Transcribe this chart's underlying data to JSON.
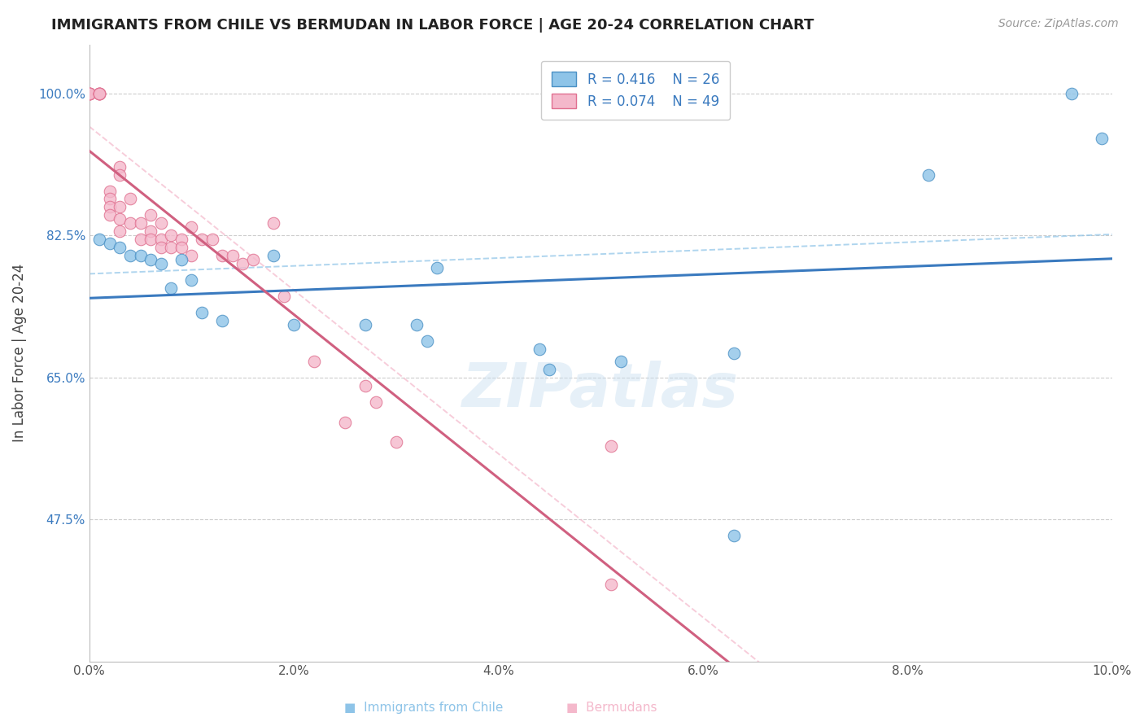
{
  "title": "IMMIGRANTS FROM CHILE VS BERMUDAN IN LABOR FORCE | AGE 20-24 CORRELATION CHART",
  "source": "Source: ZipAtlas.com",
  "ylabel": "In Labor Force | Age 20-24",
  "xlim": [
    0.0,
    0.1
  ],
  "ylim": [
    0.3,
    1.06
  ],
  "yticks": [
    0.475,
    0.65,
    0.825,
    1.0
  ],
  "ytick_labels": [
    "47.5%",
    "65.0%",
    "82.5%",
    "100.0%"
  ],
  "xticks": [
    0.0,
    0.02,
    0.04,
    0.06,
    0.08,
    0.1
  ],
  "xtick_labels": [
    "0.0%",
    "2.0%",
    "4.0%",
    "6.0%",
    "8.0%",
    "10.0%"
  ],
  "legend_r_chile": "R = 0.416",
  "legend_n_chile": "N = 26",
  "legend_r_bermuda": "R = 0.074",
  "legend_n_bermuda": "N = 49",
  "blue_fill": "#8ec4e8",
  "pink_fill": "#f4b8cb",
  "blue_edge": "#4a90c4",
  "pink_edge": "#e07090",
  "trend_blue": "#3a7abf",
  "trend_pink": "#d06080",
  "watermark": "ZIPatlas",
  "chile_x": [
    0.001,
    0.002,
    0.003,
    0.004,
    0.005,
    0.006,
    0.007,
    0.008,
    0.009,
    0.01,
    0.011,
    0.013,
    0.018,
    0.02,
    0.027,
    0.032,
    0.033,
    0.034,
    0.044,
    0.045,
    0.052,
    0.063,
    0.063,
    0.082,
    0.096,
    0.099
  ],
  "chile_y": [
    0.82,
    0.815,
    0.81,
    0.8,
    0.8,
    0.795,
    0.79,
    0.76,
    0.795,
    0.77,
    0.73,
    0.72,
    0.8,
    0.715,
    0.715,
    0.715,
    0.695,
    0.785,
    0.685,
    0.66,
    0.67,
    0.68,
    0.455,
    0.9,
    1.0,
    0.945
  ],
  "bermuda_x": [
    0.0,
    0.0,
    0.0,
    0.0,
    0.0,
    0.001,
    0.001,
    0.001,
    0.001,
    0.001,
    0.002,
    0.002,
    0.002,
    0.002,
    0.003,
    0.003,
    0.003,
    0.003,
    0.003,
    0.004,
    0.004,
    0.005,
    0.005,
    0.006,
    0.006,
    0.006,
    0.007,
    0.007,
    0.007,
    0.008,
    0.008,
    0.009,
    0.009,
    0.01,
    0.01,
    0.011,
    0.012,
    0.013,
    0.014,
    0.015,
    0.016,
    0.018,
    0.019,
    0.022,
    0.025,
    0.027,
    0.028,
    0.03,
    0.051
  ],
  "bermuda_y": [
    1.0,
    1.0,
    1.0,
    1.0,
    1.0,
    1.0,
    1.0,
    1.0,
    1.0,
    1.0,
    0.88,
    0.87,
    0.86,
    0.85,
    0.91,
    0.9,
    0.86,
    0.845,
    0.83,
    0.87,
    0.84,
    0.84,
    0.82,
    0.85,
    0.83,
    0.82,
    0.84,
    0.82,
    0.81,
    0.825,
    0.81,
    0.82,
    0.81,
    0.835,
    0.8,
    0.82,
    0.82,
    0.8,
    0.8,
    0.79,
    0.795,
    0.84,
    0.75,
    0.67,
    0.595,
    0.64,
    0.62,
    0.57,
    0.565
  ],
  "bermuda_outlier_x": [
    0.051
  ],
  "bermuda_outlier_y": [
    0.395
  ],
  "chile_low_x": [
    0.063
  ],
  "chile_low_y": [
    0.455
  ],
  "chile_very_low_x": [
    0.065
  ],
  "chile_very_low_y": [
    0.455
  ]
}
